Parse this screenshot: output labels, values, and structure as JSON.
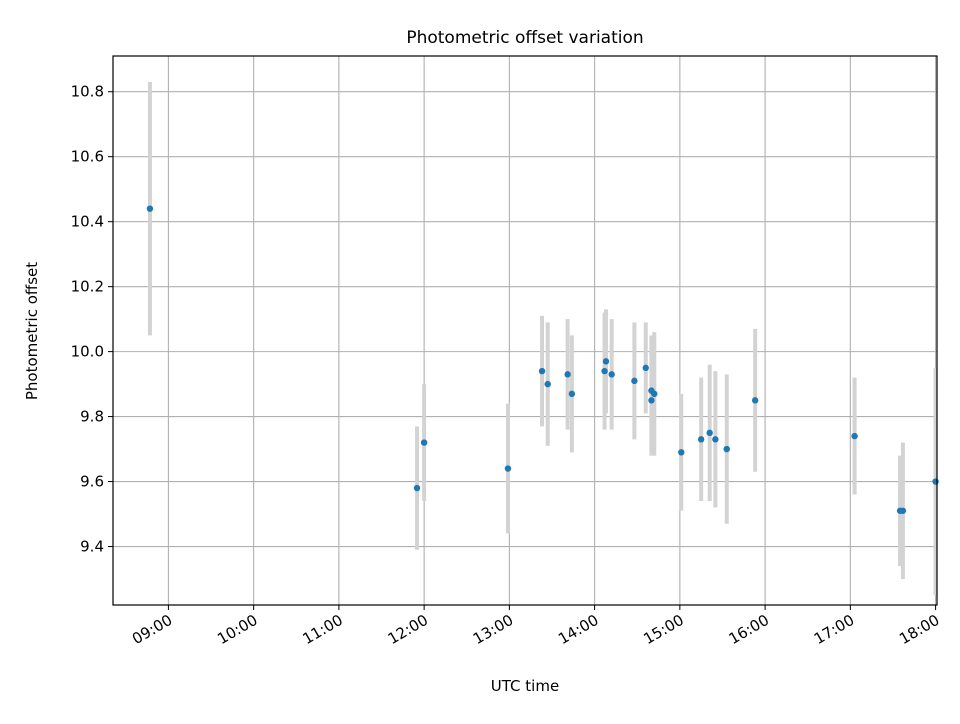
{
  "chart_data": {
    "type": "scatter",
    "title": "Photometric offset variation",
    "xlabel": "UTC time",
    "ylabel": "Photometric offset",
    "xlim": [
      "08:21",
      "18:01"
    ],
    "ylim": [
      9.22,
      10.91
    ],
    "grid": true,
    "x_ticks": [
      "09:00",
      "10:00",
      "11:00",
      "12:00",
      "13:00",
      "14:00",
      "15:00",
      "16:00",
      "17:00",
      "18:00"
    ],
    "y_ticks": [
      "9.4",
      "9.6",
      "9.8",
      "10.0",
      "10.2",
      "10.4",
      "10.6",
      "10.8"
    ],
    "marker_color": "#1f77b4",
    "errorbar_color": "#d3d3d3",
    "points": [
      {
        "x": "08:47",
        "y": 10.44,
        "yerr": 0.39
      },
      {
        "x": "11:55",
        "y": 9.58,
        "yerr": 0.19
      },
      {
        "x": "12:00",
        "y": 9.72,
        "yerr": 0.18
      },
      {
        "x": "12:59",
        "y": 9.64,
        "yerr": 0.2
      },
      {
        "x": "13:23",
        "y": 9.94,
        "yerr": 0.17
      },
      {
        "x": "13:27",
        "y": 9.9,
        "yerr": 0.19
      },
      {
        "x": "13:41",
        "y": 9.93,
        "yerr": 0.17
      },
      {
        "x": "13:44",
        "y": 9.87,
        "yerr": 0.18
      },
      {
        "x": "14:07",
        "y": 9.94,
        "yerr": 0.18
      },
      {
        "x": "14:08",
        "y": 9.97,
        "yerr": 0.16
      },
      {
        "x": "14:12",
        "y": 9.93,
        "yerr": 0.17
      },
      {
        "x": "14:28",
        "y": 9.91,
        "yerr": 0.18
      },
      {
        "x": "14:36",
        "y": 9.95,
        "yerr": 0.14
      },
      {
        "x": "14:40",
        "y": 9.88,
        "yerr": 0.17
      },
      {
        "x": "14:40",
        "y": 9.85,
        "yerr": 0.17
      },
      {
        "x": "14:42",
        "y": 9.87,
        "yerr": 0.19
      },
      {
        "x": "15:01",
        "y": 9.69,
        "yerr": 0.18
      },
      {
        "x": "15:15",
        "y": 9.73,
        "yerr": 0.19
      },
      {
        "x": "15:21",
        "y": 9.75,
        "yerr": 0.21
      },
      {
        "x": "15:25",
        "y": 9.73,
        "yerr": 0.21
      },
      {
        "x": "15:33",
        "y": 9.7,
        "yerr": 0.23
      },
      {
        "x": "15:53",
        "y": 9.85,
        "yerr": 0.22
      },
      {
        "x": "17:03",
        "y": 9.74,
        "yerr": 0.18
      },
      {
        "x": "17:35",
        "y": 9.51,
        "yerr": 0.17
      },
      {
        "x": "17:37",
        "y": 9.51,
        "yerr": 0.21
      },
      {
        "x": "18:00",
        "y": 9.6,
        "yerr": 0.35
      }
    ]
  }
}
